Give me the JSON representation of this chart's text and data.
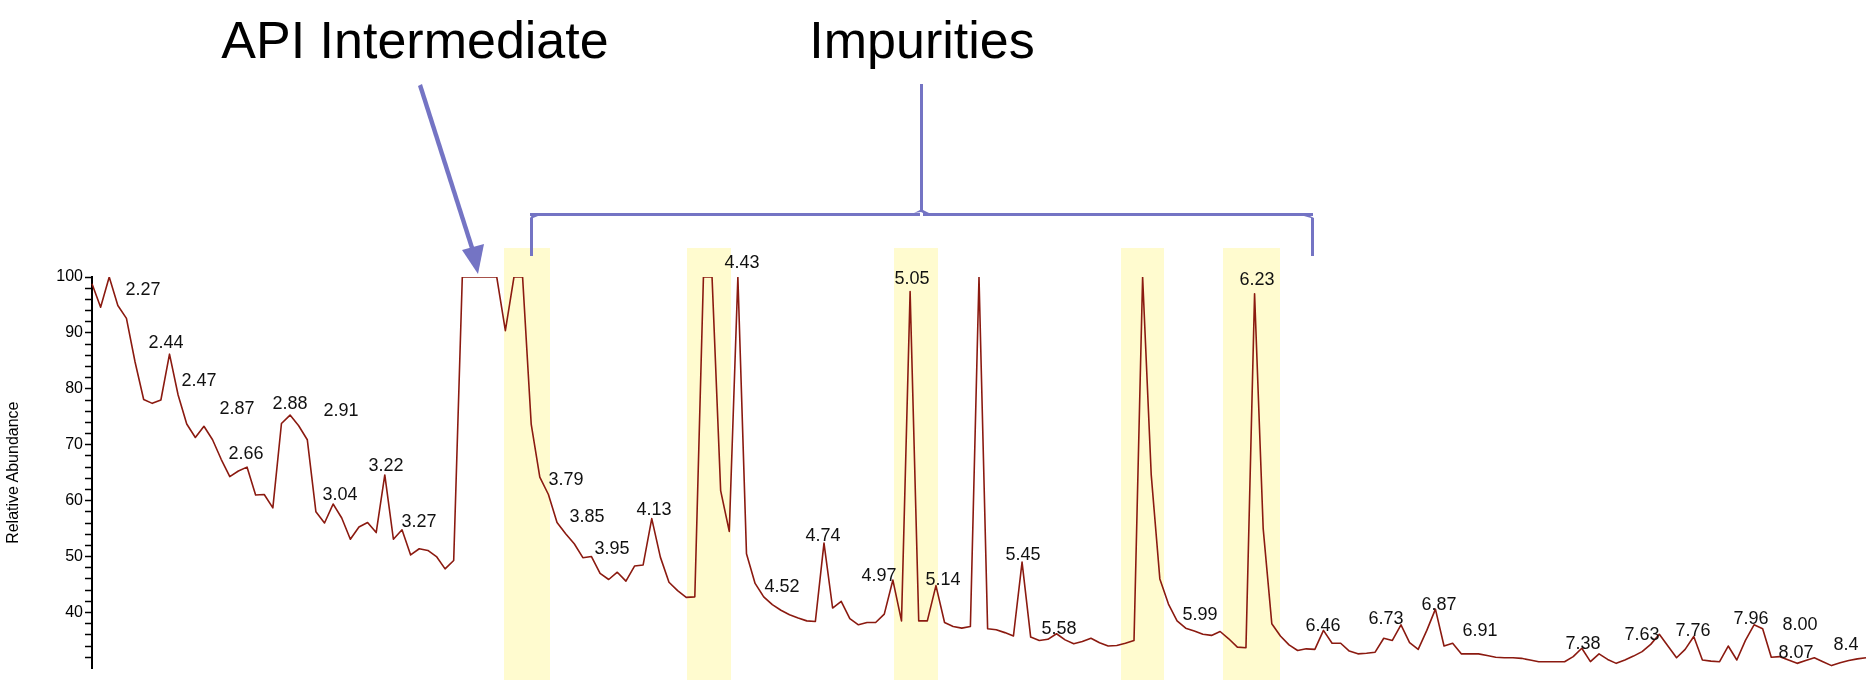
{
  "chart_data": {
    "type": "line",
    "ylabel": "Relative Abundance",
    "color": "#8b1a10",
    "tick_labels": "y",
    "ylim": [
      30,
      100
    ],
    "yticks": [
      {
        "value": 32,
        "label": null
      },
      {
        "value": 34,
        "label": null
      },
      {
        "value": 36,
        "label": null
      },
      {
        "value": 38,
        "label": null
      },
      40,
      {
        "value": 42,
        "label": null
      },
      {
        "value": 44,
        "label": null
      },
      {
        "value": 46,
        "label": null
      },
      {
        "value": 48,
        "label": null
      },
      50,
      {
        "value": 52,
        "label": null
      },
      {
        "value": 54,
        "label": null
      },
      {
        "value": 56,
        "label": null
      },
      {
        "value": 58,
        "label": null
      },
      60,
      {
        "value": 62,
        "label": null
      },
      {
        "value": 64,
        "label": null
      },
      {
        "value": 66,
        "label": null
      },
      {
        "value": 68,
        "label": null
      },
      70,
      {
        "value": 72,
        "label": null
      },
      {
        "value": 74,
        "label": null
      },
      {
        "value": 76,
        "label": null
      },
      {
        "value": 78,
        "label": null
      },
      80,
      {
        "value": 82,
        "label": null
      },
      {
        "value": 84,
        "label": null
      },
      {
        "value": 86,
        "label": null
      },
      {
        "value": 88,
        "label": null
      },
      90,
      {
        "value": 92,
        "label": null
      },
      {
        "value": 94,
        "label": null
      },
      {
        "value": 96,
        "label": null
      },
      {
        "value": 98,
        "label": null
      },
      100
    ],
    "categories": [
      null,
      null,
      null,
      null,
      null,
      null,
      null,
      null,
      null,
      null,
      null,
      null,
      null,
      null,
      null,
      null,
      null,
      null,
      null,
      null,
      null,
      null,
      null,
      null,
      null,
      null,
      null,
      null,
      null,
      null,
      null,
      null,
      null,
      null,
      null,
      null,
      null,
      null,
      null,
      null,
      null,
      null,
      null,
      null,
      null,
      null,
      null,
      null,
      null,
      null,
      null,
      null,
      null,
      null,
      null,
      null,
      null,
      null,
      null,
      null,
      null,
      null,
      null,
      null,
      null,
      null,
      null,
      null,
      null,
      null,
      null,
      null,
      null,
      null,
      null,
      null,
      null,
      null,
      null,
      null,
      null,
      null,
      null,
      null,
      null,
      null,
      null,
      null,
      null,
      null,
      null,
      null,
      null,
      null,
      null,
      null,
      null,
      null,
      null,
      null,
      null,
      null,
      null,
      null,
      null,
      null,
      null,
      null,
      null,
      null,
      null,
      null,
      null,
      null,
      null,
      null,
      null,
      null,
      null,
      null,
      null,
      null,
      null,
      null,
      null,
      null,
      null,
      null,
      null,
      null,
      null,
      null,
      null,
      null,
      null,
      null,
      null,
      null,
      null,
      null,
      null,
      null,
      null,
      null,
      null,
      null,
      null,
      null,
      null,
      null,
      null,
      null,
      null,
      null,
      null,
      null,
      null,
      null,
      null,
      null,
      null,
      null,
      null,
      null,
      null,
      null,
      null,
      null,
      null,
      null,
      null,
      null,
      null,
      null,
      null,
      null,
      null,
      null,
      null,
      null,
      null,
      null,
      null,
      null,
      null,
      null,
      null,
      null,
      null,
      null,
      null,
      null,
      null,
      null,
      null,
      null,
      null,
      null,
      null,
      null,
      null,
      null,
      null,
      null,
      null,
      null,
      null
    ],
    "values": [
      98.8,
      94.6,
      100,
      94.9,
      92.6,
      84.8,
      78.1,
      77.4,
      78,
      86.2,
      78.9,
      73.7,
      71.3,
      73.3,
      70.9,
      67.4,
      64.3,
      65.3,
      66,
      61,
      61.1,
      58.7,
      73.8,
      75.3,
      73.4,
      70.9,
      58,
      56,
      59.4,
      56.9,
      53.1,
      55.3,
      56.1,
      54.3,
      64.6,
      53.1,
      54.8,
      50.3,
      51.4,
      51.1,
      50,
      47.8,
      49.3,
      100,
      100,
      100,
      100,
      100,
      90.4,
      100,
      100,
      73.7,
      64.2,
      61.1,
      56.1,
      54.1,
      52.3,
      49.8,
      50,
      47,
      45.9,
      47.2,
      45.6,
      48.3,
      48.5,
      56.8,
      49.9,
      45.4,
      43.9,
      42.7,
      42.8,
      100,
      100,
      61.8,
      54.5,
      100,
      50.5,
      45.2,
      42.8,
      41.4,
      40.4,
      39.6,
      39,
      38.5,
      38.4,
      52.4,
      40.8,
      42,
      38.9,
      37.8,
      38.2,
      38.2,
      39.7,
      45.8,
      38.5,
      97.4,
      38.5,
      38.5,
      44.8,
      38.2,
      37.5,
      37.2,
      37.5,
      100,
      37.1,
      36.9,
      36.4,
      35.8,
      49,
      35.6,
      35,
      35.2,
      36.2,
      35.1,
      34.4,
      34.8,
      35.4,
      34.6,
      34,
      34.1,
      34.5,
      35,
      100,
      64.6,
      46,
      41.5,
      38.5,
      37.2,
      36.7,
      36.1,
      35.9,
      36.6,
      35.3,
      33.8,
      33.7,
      97,
      55,
      38,
      35.8,
      34.2,
      33.2,
      33.5,
      33.4,
      36.8,
      34.5,
      34.5,
      33.1,
      32.6,
      32.7,
      32.9,
      35.4,
      35,
      37.8,
      34.6,
      33.4,
      36.8,
      40.6,
      34,
      34.5,
      32.6,
      32.6,
      32.6,
      32.3,
      32,
      31.9,
      31.9,
      31.8,
      31.5,
      31.2,
      31.2,
      31.2,
      31.2,
      32.1,
      33.6,
      31.2,
      32.6,
      31.6,
      30.9,
      31.5,
      32.2,
      33,
      34.3,
      36.1,
      34,
      31.9,
      33.4,
      35.7,
      31.5,
      31.3,
      31.2,
      34,
      31.5,
      35,
      37.8,
      37.1,
      32,
      32.1,
      31.5,
      30.9,
      31.4,
      31.9,
      31.2,
      30.5,
      31,
      31.4,
      31.7,
      31.9
    ],
    "annotations": [
      "API Intermediate",
      "Impurities",
      "2.27",
      "2.44",
      "2.47",
      "2.87",
      "2.88",
      "2.91",
      "2.66",
      "3.04",
      "3.22",
      "3.27",
      "3.79",
      "3.85",
      "3.95",
      "4.13",
      "4.43",
      "4.52",
      "4.74",
      "4.97",
      "5.05",
      "5.14",
      "5.45",
      "5.58",
      "5.99",
      "6.23",
      "6.46",
      "6.73",
      "6.87",
      "6.91",
      "7.38",
      "7.63",
      "7.76",
      "7.96",
      "8.00",
      "8.07",
      "8.4"
    ]
  }
}
